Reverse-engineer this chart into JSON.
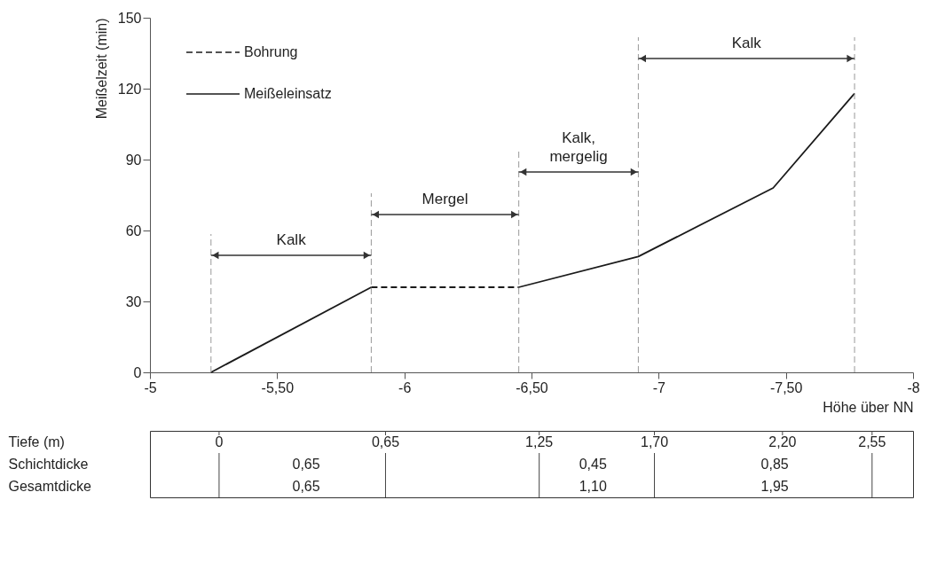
{
  "chart_data": [
    {
      "type": "line",
      "xlabel": "Höhe über NN",
      "ylabel": "Meißelzeit (min)",
      "xlim": [
        -5,
        -8
      ],
      "xticks": [
        -5,
        {
          "value": -5.5,
          "label": "-5,50"
        },
        -6,
        {
          "value": -6.5,
          "label": "-6,50"
        },
        -7,
        {
          "value": -7.5,
          "label": "-7,50"
        },
        -8
      ],
      "ylim": [
        0,
        150
      ],
      "yticks": [
        0,
        30,
        60,
        90,
        120,
        150
      ],
      "legend": "top left",
      "series": [
        {
          "name": "Bohrung",
          "color": "#1a1a1a",
          "line_style": "dashed",
          "x": [
            -5.87,
            -6.45
          ],
          "values": [
            36,
            36
          ]
        },
        {
          "name": "Meißeleinsatz",
          "color": "#1a1a1a",
          "line_style": "solid",
          "x": [
            -5.24,
            -5.87
          ],
          "values": [
            0,
            36
          ]
        },
        {
          "color": "#1a1a1a",
          "line_style": "solid",
          "x": [
            -6.45,
            -6.92,
            -7.45,
            -7.77
          ],
          "values": [
            36,
            49,
            78,
            118
          ]
        }
      ],
      "ref_lines": [
        {
          "axis": "x",
          "value": -5.24,
          "color": "#999999",
          "line_style": "dashed"
        },
        {
          "axis": "x",
          "value": -5.87,
          "color": "#999999",
          "line_style": "dashed"
        },
        {
          "axis": "x",
          "value": -6.45,
          "color": "#999999",
          "line_style": "dashed"
        },
        {
          "axis": "x",
          "value": -6.92,
          "color": "#999999",
          "line_style": "dashed"
        },
        {
          "axis": "x",
          "value": -7.77,
          "color": "#999999",
          "line_style": "dashed"
        }
      ],
      "annotations": [
        "Kalk",
        "Mergel",
        "Kalk,\nmergelig",
        "Kalk"
      ]
    },
    {
      "type": "other",
      "y_categories": [
        "Tiefe (m)",
        "Schichtdicke",
        "Gesamtdicke"
      ],
      "annotations": [
        "0",
        "0,65",
        "1,25",
        "1,70",
        "2,20",
        "2,55",
        "0,65",
        "0,45",
        "0,85",
        "0,65",
        "1,10",
        "1,95"
      ]
    }
  ]
}
